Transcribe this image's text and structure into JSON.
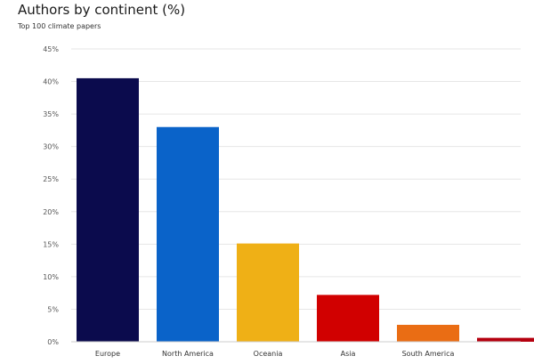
{
  "chart_data": {
    "type": "bar",
    "title": "Authors by continent (%)",
    "subtitle": "Top 100 climate papers",
    "categories": [
      "Europe",
      "North America",
      "Oceania",
      "Asia",
      "South America",
      ""
    ],
    "values": [
      40.5,
      33.0,
      15.1,
      7.2,
      2.6,
      0.6
    ],
    "colors": [
      "#0b0b4d",
      "#0a63c9",
      "#efb016",
      "#d10000",
      "#ea6d14",
      "#b5000f"
    ],
    "ylim": [
      0,
      45
    ],
    "yticks": [
      0,
      5,
      10,
      15,
      20,
      25,
      30,
      35,
      40,
      45
    ],
    "ytick_format": "%",
    "xlabel": "",
    "ylabel": "",
    "grid": true,
    "legend": "none"
  }
}
